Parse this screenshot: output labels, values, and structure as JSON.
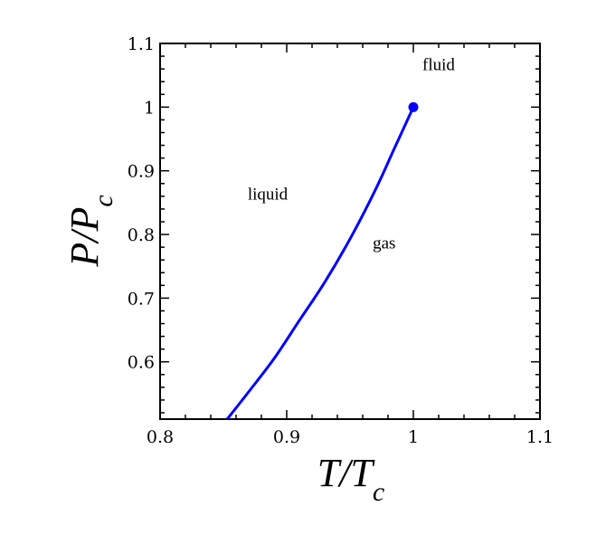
{
  "chart_data": {
    "type": "line",
    "title": "",
    "xlabel_main": "T/T",
    "xlabel_sub": "c",
    "ylabel_main": "P/P",
    "ylabel_sub": "c",
    "xlim": [
      0.8,
      1.1
    ],
    "ylim": [
      0.51,
      1.1
    ],
    "xticks": [
      0.8,
      0.9,
      1.0,
      1.1
    ],
    "xtick_labels": [
      "0.8",
      "0.9",
      "1",
      "1.1"
    ],
    "yticks": [
      0.6,
      0.7,
      0.8,
      0.9,
      1.0,
      1.1
    ],
    "ytick_labels": [
      "0.6",
      "0.7",
      "0.8",
      "0.9",
      "1",
      "1.1"
    ],
    "grid": false,
    "series": [
      {
        "color": "#0000ff",
        "x": [
          0.853,
          0.87,
          0.89,
          0.91,
          0.93,
          0.95,
          0.97,
          0.985,
          1.0
        ],
        "y": [
          0.51,
          0.553,
          0.605,
          0.665,
          0.725,
          0.793,
          0.87,
          0.935,
          1.0
        ]
      }
    ],
    "critical_point": {
      "x": 1.0,
      "y": 1.0,
      "color": "#0000ff"
    },
    "annotations": [
      {
        "text": "fluid",
        "x": 1.02,
        "y": 1.058
      },
      {
        "text": "liquid",
        "x": 0.885,
        "y": 0.855
      },
      {
        "text": "gas",
        "x": 0.977,
        "y": 0.778
      }
    ]
  }
}
